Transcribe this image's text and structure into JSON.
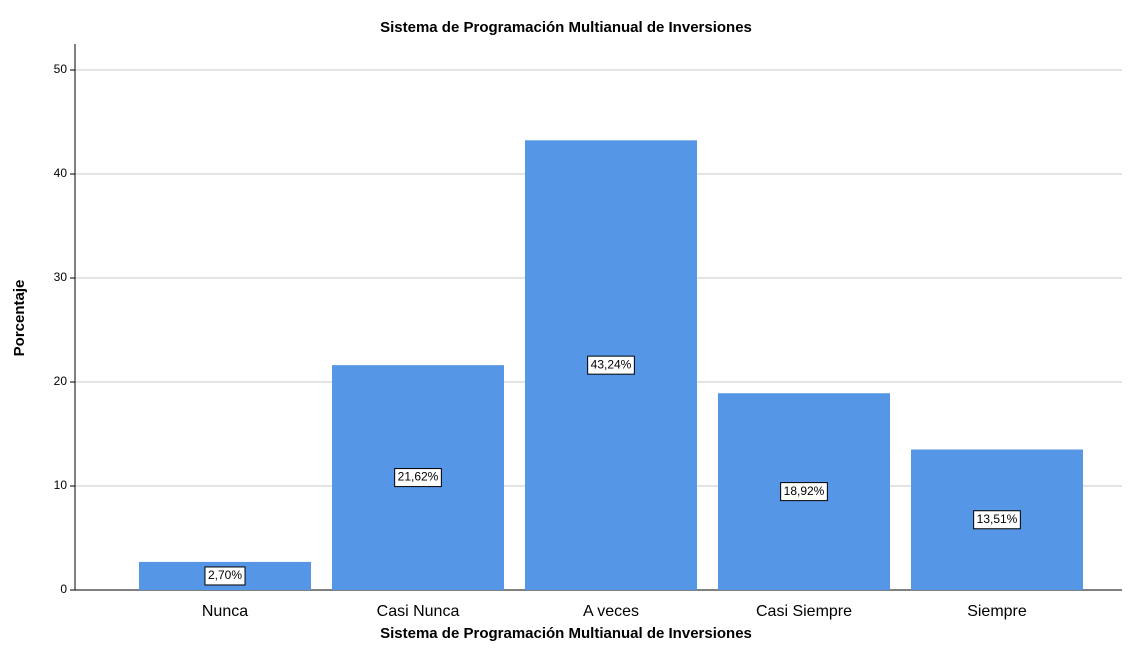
{
  "chart_data": {
    "type": "bar",
    "title": "Sistema de Programación Multianual de Inversiones",
    "x_label": "Sistema de Programación Multianual de Inversiones",
    "y_label": "Porcentaje",
    "categories": [
      "Nunca",
      "Casi Nunca",
      "A veces",
      "Casi Siempre",
      "Siempre"
    ],
    "values": [
      2.7,
      21.62,
      43.24,
      18.92,
      13.51
    ],
    "value_labels": [
      "2,70%",
      "21,62%",
      "43,24%",
      "18,92%",
      "13,51%"
    ],
    "color": "#5596e6",
    "ylim": [
      0,
      52.5
    ],
    "yticks": [
      0,
      10,
      20,
      30,
      40,
      50
    ],
    "grid": true
  }
}
